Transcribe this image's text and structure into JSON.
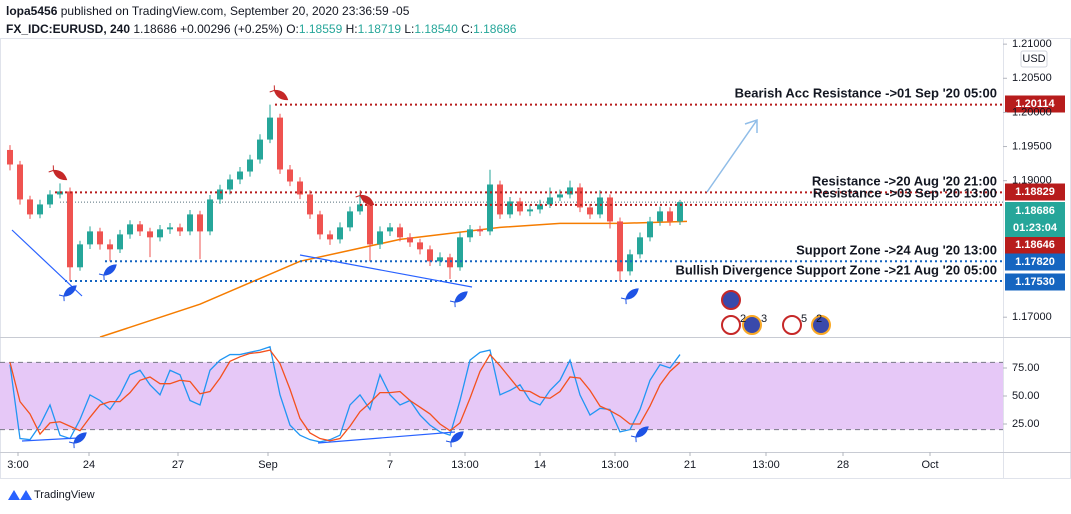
{
  "header": {
    "author": "lopa5456",
    "published": "published on TradingView.com, September 20, 2020 23:36:59 -05",
    "symbol": "FX_IDC:EURUSD, 240",
    "price": "1.18686",
    "change": "+0.00296 (+0.25%)",
    "ohlc": [
      {
        "label": "O:",
        "value": "1.18559"
      },
      {
        "label": "H:",
        "value": "1.18719"
      },
      {
        "label": "L:",
        "value": "1.18540"
      },
      {
        "label": "C:",
        "value": "1.18686"
      }
    ]
  },
  "events": [
    "2",
    "3",
    "5",
    "2"
  ],
  "footer": {
    "brand": "TradingView"
  },
  "chart_data": [
    {
      "type": "candlestick",
      "currency": "USD",
      "up_color": "#26a69a",
      "down_color": "#ef5350",
      "x": [
        0,
        1,
        2,
        3,
        4,
        5,
        6,
        7,
        8,
        9,
        10,
        11,
        12,
        13,
        14,
        15,
        16,
        17,
        18,
        19,
        20,
        21,
        22,
        23,
        24,
        25,
        26,
        27,
        28,
        29,
        30,
        31,
        32,
        33,
        34,
        35,
        36,
        37,
        38,
        39,
        40,
        41,
        42,
        43,
        44,
        45,
        46,
        47,
        48,
        49,
        50,
        51,
        52,
        53,
        54,
        55,
        56,
        57,
        58,
        59,
        60,
        61,
        62,
        63,
        64,
        65,
        66,
        67
      ],
      "open": [
        1.1945,
        1.19237,
        1.18725,
        1.18506,
        1.18652,
        1.18798,
        1.18842,
        1.17731,
        1.18067,
        1.18257,
        1.18067,
        1.17994,
        1.18213,
        1.1836,
        1.18257,
        1.1817,
        1.18287,
        1.18316,
        1.18257,
        1.18506,
        1.18257,
        1.18725,
        1.18871,
        1.19018,
        1.19134,
        1.1931,
        1.19602,
        1.19924,
        1.19164,
        1.18988,
        1.18798,
        1.18506,
        1.18213,
        1.1814,
        1.18316,
        1.1855,
        1.18652,
        1.18067,
        1.18257,
        1.18316,
        1.1817,
        1.18096,
        1.17994,
        1.17819,
        1.17877,
        1.17731,
        1.1817,
        1.18287,
        1.18257,
        1.18944,
        1.18506,
        1.18696,
        1.1855,
        1.18579,
        1.18652,
        1.18754,
        1.18798,
        1.18901,
        1.18608,
        1.18506,
        1.18754,
        1.18403,
        1.17672,
        1.17921,
        1.1817,
        1.18403,
        1.1855,
        1.18403
      ],
      "high": [
        1.1952,
        1.1929,
        1.1878,
        1.1872,
        1.1886,
        1.1896,
        1.189,
        1.1812,
        1.1833,
        1.1831,
        1.1814,
        1.1828,
        1.1842,
        1.1841,
        1.1831,
        1.1835,
        1.1838,
        1.1837,
        1.1857,
        1.1856,
        1.1879,
        1.1894,
        1.1909,
        1.192,
        1.1938,
        1.1968,
        1.20114,
        1.1998,
        1.1923,
        1.1905,
        1.1886,
        1.1856,
        1.1827,
        1.1839,
        1.1862,
        1.18829,
        1.1871,
        1.1833,
        1.1838,
        1.1837,
        1.1823,
        1.1815,
        1.1805,
        1.1795,
        1.1793,
        1.1824,
        1.1835,
        1.1834,
        1.1916,
        1.19,
        1.1876,
        1.1875,
        1.1865,
        1.1872,
        1.189,
        1.1887,
        1.19,
        1.1896,
        1.1866,
        1.1886,
        1.188,
        1.1846,
        1.1799,
        1.1824,
        1.1847,
        1.1862,
        1.1861,
        1.18719
      ],
      "low": [
        1.1915,
        1.1865,
        1.1844,
        1.1845,
        1.186,
        1.1874,
        1.1753,
        1.1768,
        1.18,
        1.1799,
        1.1782,
        1.1794,
        1.1815,
        1.1819,
        1.1788,
        1.1811,
        1.1822,
        1.1819,
        1.182,
        1.1785,
        1.182,
        1.1866,
        1.188,
        1.1895,
        1.1906,
        1.1925,
        1.1955,
        1.191,
        1.1892,
        1.1873,
        1.1844,
        1.1814,
        1.1806,
        1.1808,
        1.1826,
        1.185,
        1.1782,
        1.18,
        1.1819,
        1.1811,
        1.1803,
        1.1792,
        1.1775,
        1.1775,
        1.1756,
        1.1768,
        1.181,
        1.1819,
        1.182,
        1.1844,
        1.1845,
        1.1849,
        1.1848,
        1.1852,
        1.186,
        1.187,
        1.1874,
        1.1854,
        1.1844,
        1.1845,
        1.183,
        1.1753,
        1.1761,
        1.1786,
        1.1811,
        1.1834,
        1.1834,
        1.1835
      ],
      "close": [
        1.19237,
        1.18725,
        1.18506,
        1.18652,
        1.18798,
        1.18842,
        1.17731,
        1.18067,
        1.18257,
        1.18067,
        1.17994,
        1.18213,
        1.1836,
        1.18257,
        1.1817,
        1.18287,
        1.18316,
        1.18257,
        1.18506,
        1.18257,
        1.18725,
        1.18871,
        1.19018,
        1.19134,
        1.1931,
        1.19602,
        1.19924,
        1.19164,
        1.18988,
        1.18798,
        1.18506,
        1.18213,
        1.1814,
        1.18316,
        1.1855,
        1.18652,
        1.18067,
        1.18257,
        1.18316,
        1.1817,
        1.18096,
        1.17994,
        1.17819,
        1.17877,
        1.17731,
        1.1817,
        1.18287,
        1.18257,
        1.18944,
        1.18506,
        1.18696,
        1.1855,
        1.18579,
        1.18652,
        1.18754,
        1.18798,
        1.18901,
        1.18608,
        1.18506,
        1.18754,
        1.18403,
        1.17672,
        1.17921,
        1.1817,
        1.18403,
        1.1855,
        1.18403,
        1.18686
      ],
      "xlim": [
        -1,
        99.3
      ],
      "ylim": [
        1.1671,
        1.2109
      ],
      "yticks": [
        {
          "value": 1.21,
          "label": "1.21000"
        },
        {
          "value": 1.205,
          "label": "1.20500"
        },
        {
          "value": 1.2,
          "label": "1.20000"
        },
        {
          "value": 1.195,
          "label": "1.19500"
        },
        {
          "value": 1.19,
          "label": "1.19000"
        },
        {
          "value": 1.17,
          "label": "1.17000"
        }
      ],
      "moving_average": {
        "color": "#f57c00",
        "x": [
          9,
          19,
          29,
          39,
          49,
          55,
          61,
          67.7
        ],
        "values": [
          1.16708,
          1.1719,
          1.17819,
          1.1814,
          1.18316,
          1.18374,
          1.18374,
          1.18403
        ]
      },
      "levels": [
        {
          "label": "Bearish Acc Resistance ->01 Sep '20 05:00",
          "value": 1.20114,
          "value_label": "1.20114",
          "color": "#b71c1c"
        },
        {
          "label": "Resistance ->20 Aug '20 21:00",
          "value": 1.18829,
          "value_label": "1.18829",
          "color": "#b71c1c"
        },
        {
          "label": "Resistance ->03 Sep '20 13:00",
          "value": 1.18646,
          "value_label": "1.18646",
          "color": "#b71c1c"
        },
        {
          "label": "Support Zone ->24 Aug '20 13:00",
          "value": 1.1782,
          "value_label": "1.17820",
          "color": "#1565c0"
        },
        {
          "label": "Bullish Divergence Support Zone ->21 Aug '20 05:00",
          "value": 1.1753,
          "value_label": "1.17530",
          "color": "#1565c0"
        }
      ],
      "last": {
        "value": 1.18686,
        "label": "1.18686",
        "countdown": "01:23:04",
        "color": "#26a69a"
      }
    },
    {
      "type": "line",
      "x": [
        0,
        1,
        2,
        3,
        4,
        5,
        6,
        7,
        8,
        9,
        10,
        11,
        12,
        13,
        14,
        15,
        16,
        17,
        18,
        19,
        20,
        21,
        22,
        23,
        24,
        25,
        26,
        27,
        28,
        29,
        30,
        31,
        32,
        33,
        34,
        35,
        36,
        37,
        38,
        39,
        40,
        41,
        42,
        43,
        44,
        45,
        46,
        47,
        48,
        49,
        50,
        51,
        52,
        53,
        54,
        55,
        56,
        57,
        58,
        59,
        60,
        61,
        62,
        63,
        64,
        65,
        66,
        67
      ],
      "series": [
        {
          "color": "#2196f3",
          "values": [
            78,
            12,
            11,
            24,
            42,
            15,
            12,
            29,
            51,
            46,
            38,
            51,
            69,
            73,
            60,
            51,
            73,
            69,
            46,
            42,
            73,
            82,
            87,
            87,
            89,
            91,
            94,
            51,
            24,
            15,
            11,
            9,
            11,
            15,
            42,
            51,
            38,
            69,
            51,
            42,
            46,
            33,
            24,
            18,
            15,
            46,
            82,
            89,
            91,
            51,
            55,
            60,
            46,
            42,
            55,
            64,
            82,
            51,
            33,
            39,
            38,
            18,
            20,
            38,
            64,
            78,
            75,
            87
          ]
        },
        {
          "color": "#f4511e",
          "values": [
            80,
            45,
            34,
            16,
            26,
            27,
            23,
            19,
            31,
            42,
            45,
            45,
            53,
            64,
            67,
            61,
            61,
            64,
            63,
            52,
            54,
            66,
            81,
            85,
            88,
            89,
            91,
            79,
            56,
            30,
            17,
            12,
            10,
            12,
            23,
            36,
            44,
            53,
            53,
            54,
            46,
            40,
            34,
            25,
            19,
            26,
            48,
            72,
            87,
            77,
            66,
            55,
            54,
            49,
            48,
            54,
            67,
            66,
            55,
            41,
            37,
            32,
            25,
            25,
            41,
            60,
            72,
            80
          ]
        }
      ],
      "xlim": [
        -1,
        99.3
      ],
      "ylim": [
        0,
        100
      ],
      "yticks": [
        {
          "value": 75,
          "label": "75.00"
        },
        {
          "value": 50,
          "label": "50.00"
        },
        {
          "value": 25,
          "label": "25.00"
        }
      ],
      "band": [
        20,
        80
      ],
      "band_color": "#e6c8f7",
      "xticks": [
        {
          "value": 0.8,
          "label": "3:00"
        },
        {
          "value": 7.9,
          "label": "24"
        },
        {
          "value": 16.8,
          "label": "27"
        },
        {
          "value": 25.8,
          "label": "Sep"
        },
        {
          "value": 38,
          "label": "7"
        },
        {
          "value": 45.5,
          "label": "13:00"
        },
        {
          "value": 53,
          "label": "14"
        },
        {
          "value": 60.5,
          "label": "13:00"
        },
        {
          "value": 68,
          "label": "21"
        },
        {
          "value": 75.6,
          "label": "13:00"
        },
        {
          "value": 83.3,
          "label": "28"
        },
        {
          "value": 92,
          "label": "Oct"
        }
      ]
    }
  ]
}
